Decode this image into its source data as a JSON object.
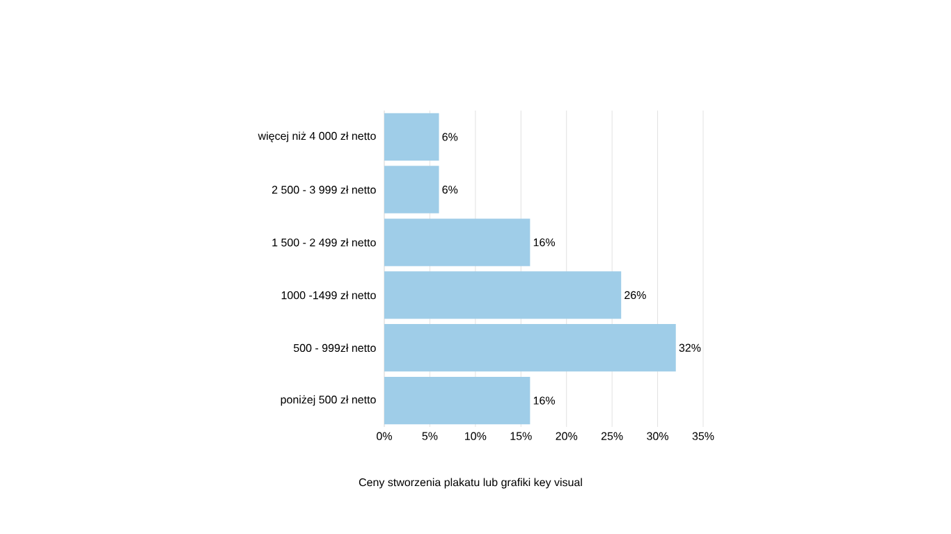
{
  "chart_data": {
    "type": "bar",
    "orientation": "horizontal",
    "title": "Ceny stworzenia plakatu lub grafiki key visual",
    "categories": [
      "więcej niż 4 000 zł netto",
      "2 500 - 3 999 zł netto",
      "1 500 - 2 499 zł netto",
      "1000 -1499 zł netto",
      "500 - 999zł netto",
      "poniżej 500 zł netto"
    ],
    "values": [
      6,
      6,
      16,
      26,
      32,
      16
    ],
    "value_labels": [
      "6%",
      "6%",
      "16%",
      "26%",
      "32%",
      "16%"
    ],
    "color": "#9fcde8",
    "xlim": [
      0,
      35
    ],
    "xticks": [
      {
        "value": 0,
        "label": "0%"
      },
      {
        "value": 5,
        "label": "5%"
      },
      {
        "value": 10,
        "label": "10%"
      },
      {
        "value": 15,
        "label": "15%"
      },
      {
        "value": 20,
        "label": "20%"
      },
      {
        "value": 25,
        "label": "25%"
      },
      {
        "value": 30,
        "label": "30%"
      },
      {
        "value": 35,
        "label": "35%"
      }
    ],
    "grid": "x"
  }
}
